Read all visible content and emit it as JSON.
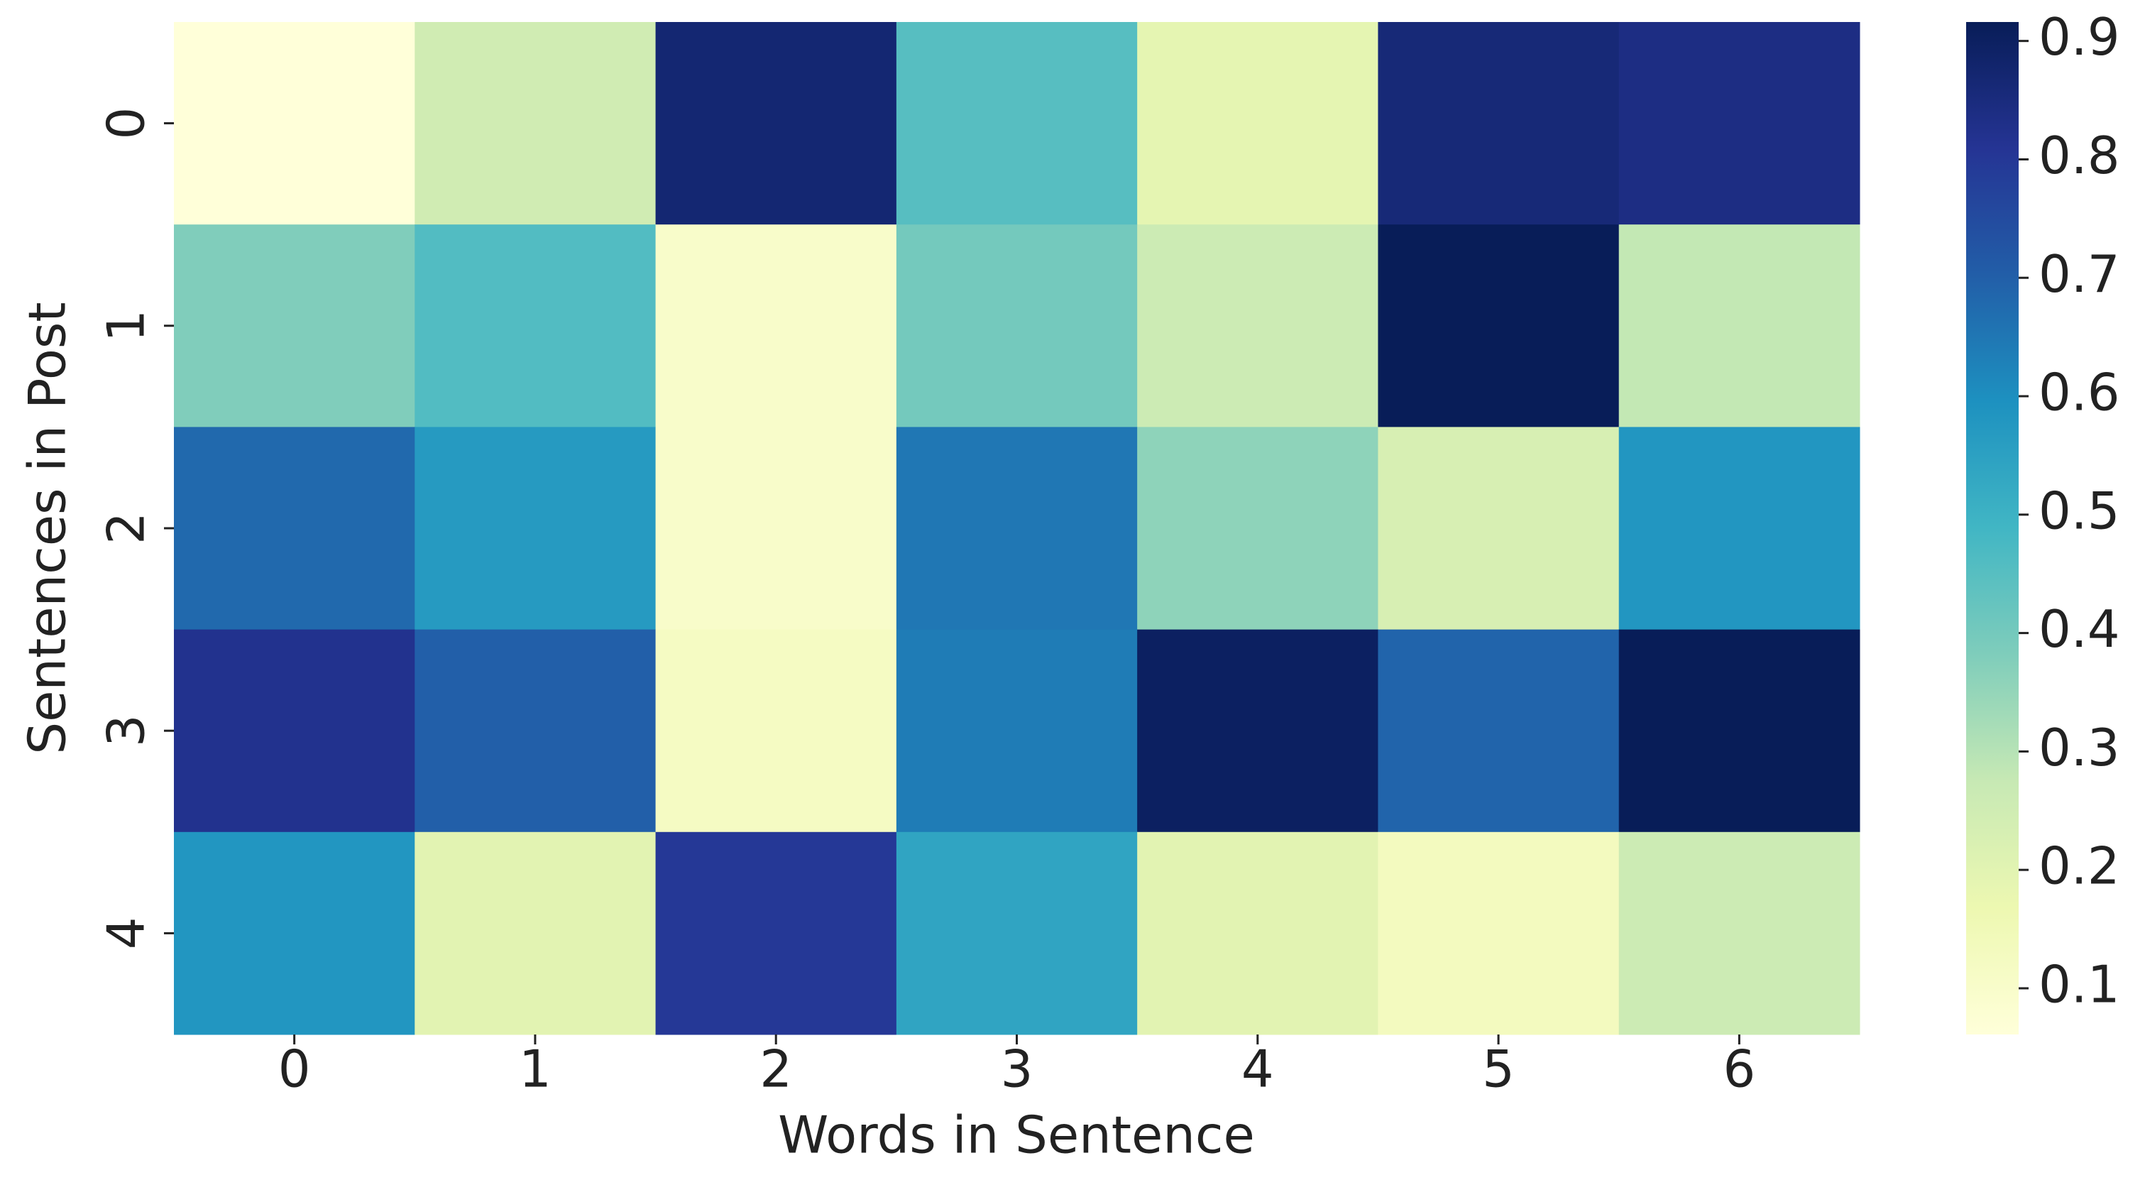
{
  "chart_data": {
    "type": "heatmap",
    "xlabel": "Words in Sentence",
    "ylabel": "Sentences in Post",
    "x_categories": [
      0,
      1,
      2,
      3,
      4,
      5,
      6
    ],
    "y_categories": [
      0,
      1,
      2,
      3,
      4
    ],
    "values": [
      [
        0.06,
        0.25,
        0.87,
        0.45,
        0.19,
        0.86,
        0.84
      ],
      [
        0.38,
        0.46,
        0.1,
        0.4,
        0.26,
        0.92,
        0.28
      ],
      [
        0.68,
        0.57,
        0.1,
        0.65,
        0.36,
        0.23,
        0.58
      ],
      [
        0.82,
        0.7,
        0.12,
        0.64,
        0.9,
        0.69,
        0.92
      ],
      [
        0.58,
        0.2,
        0.8,
        0.54,
        0.2,
        0.13,
        0.26
      ]
    ],
    "colormap": [
      "#ffffd9",
      "#edf8b1",
      "#c7e9b4",
      "#7fcdbb",
      "#41b6c4",
      "#1d91c0",
      "#225ea8",
      "#253494",
      "#081d58"
    ],
    "clim": [
      0.061,
      0.916
    ],
    "cticks": [
      0.1,
      0.2,
      0.3,
      0.4,
      0.5,
      0.6,
      0.7,
      0.8,
      0.9
    ]
  }
}
